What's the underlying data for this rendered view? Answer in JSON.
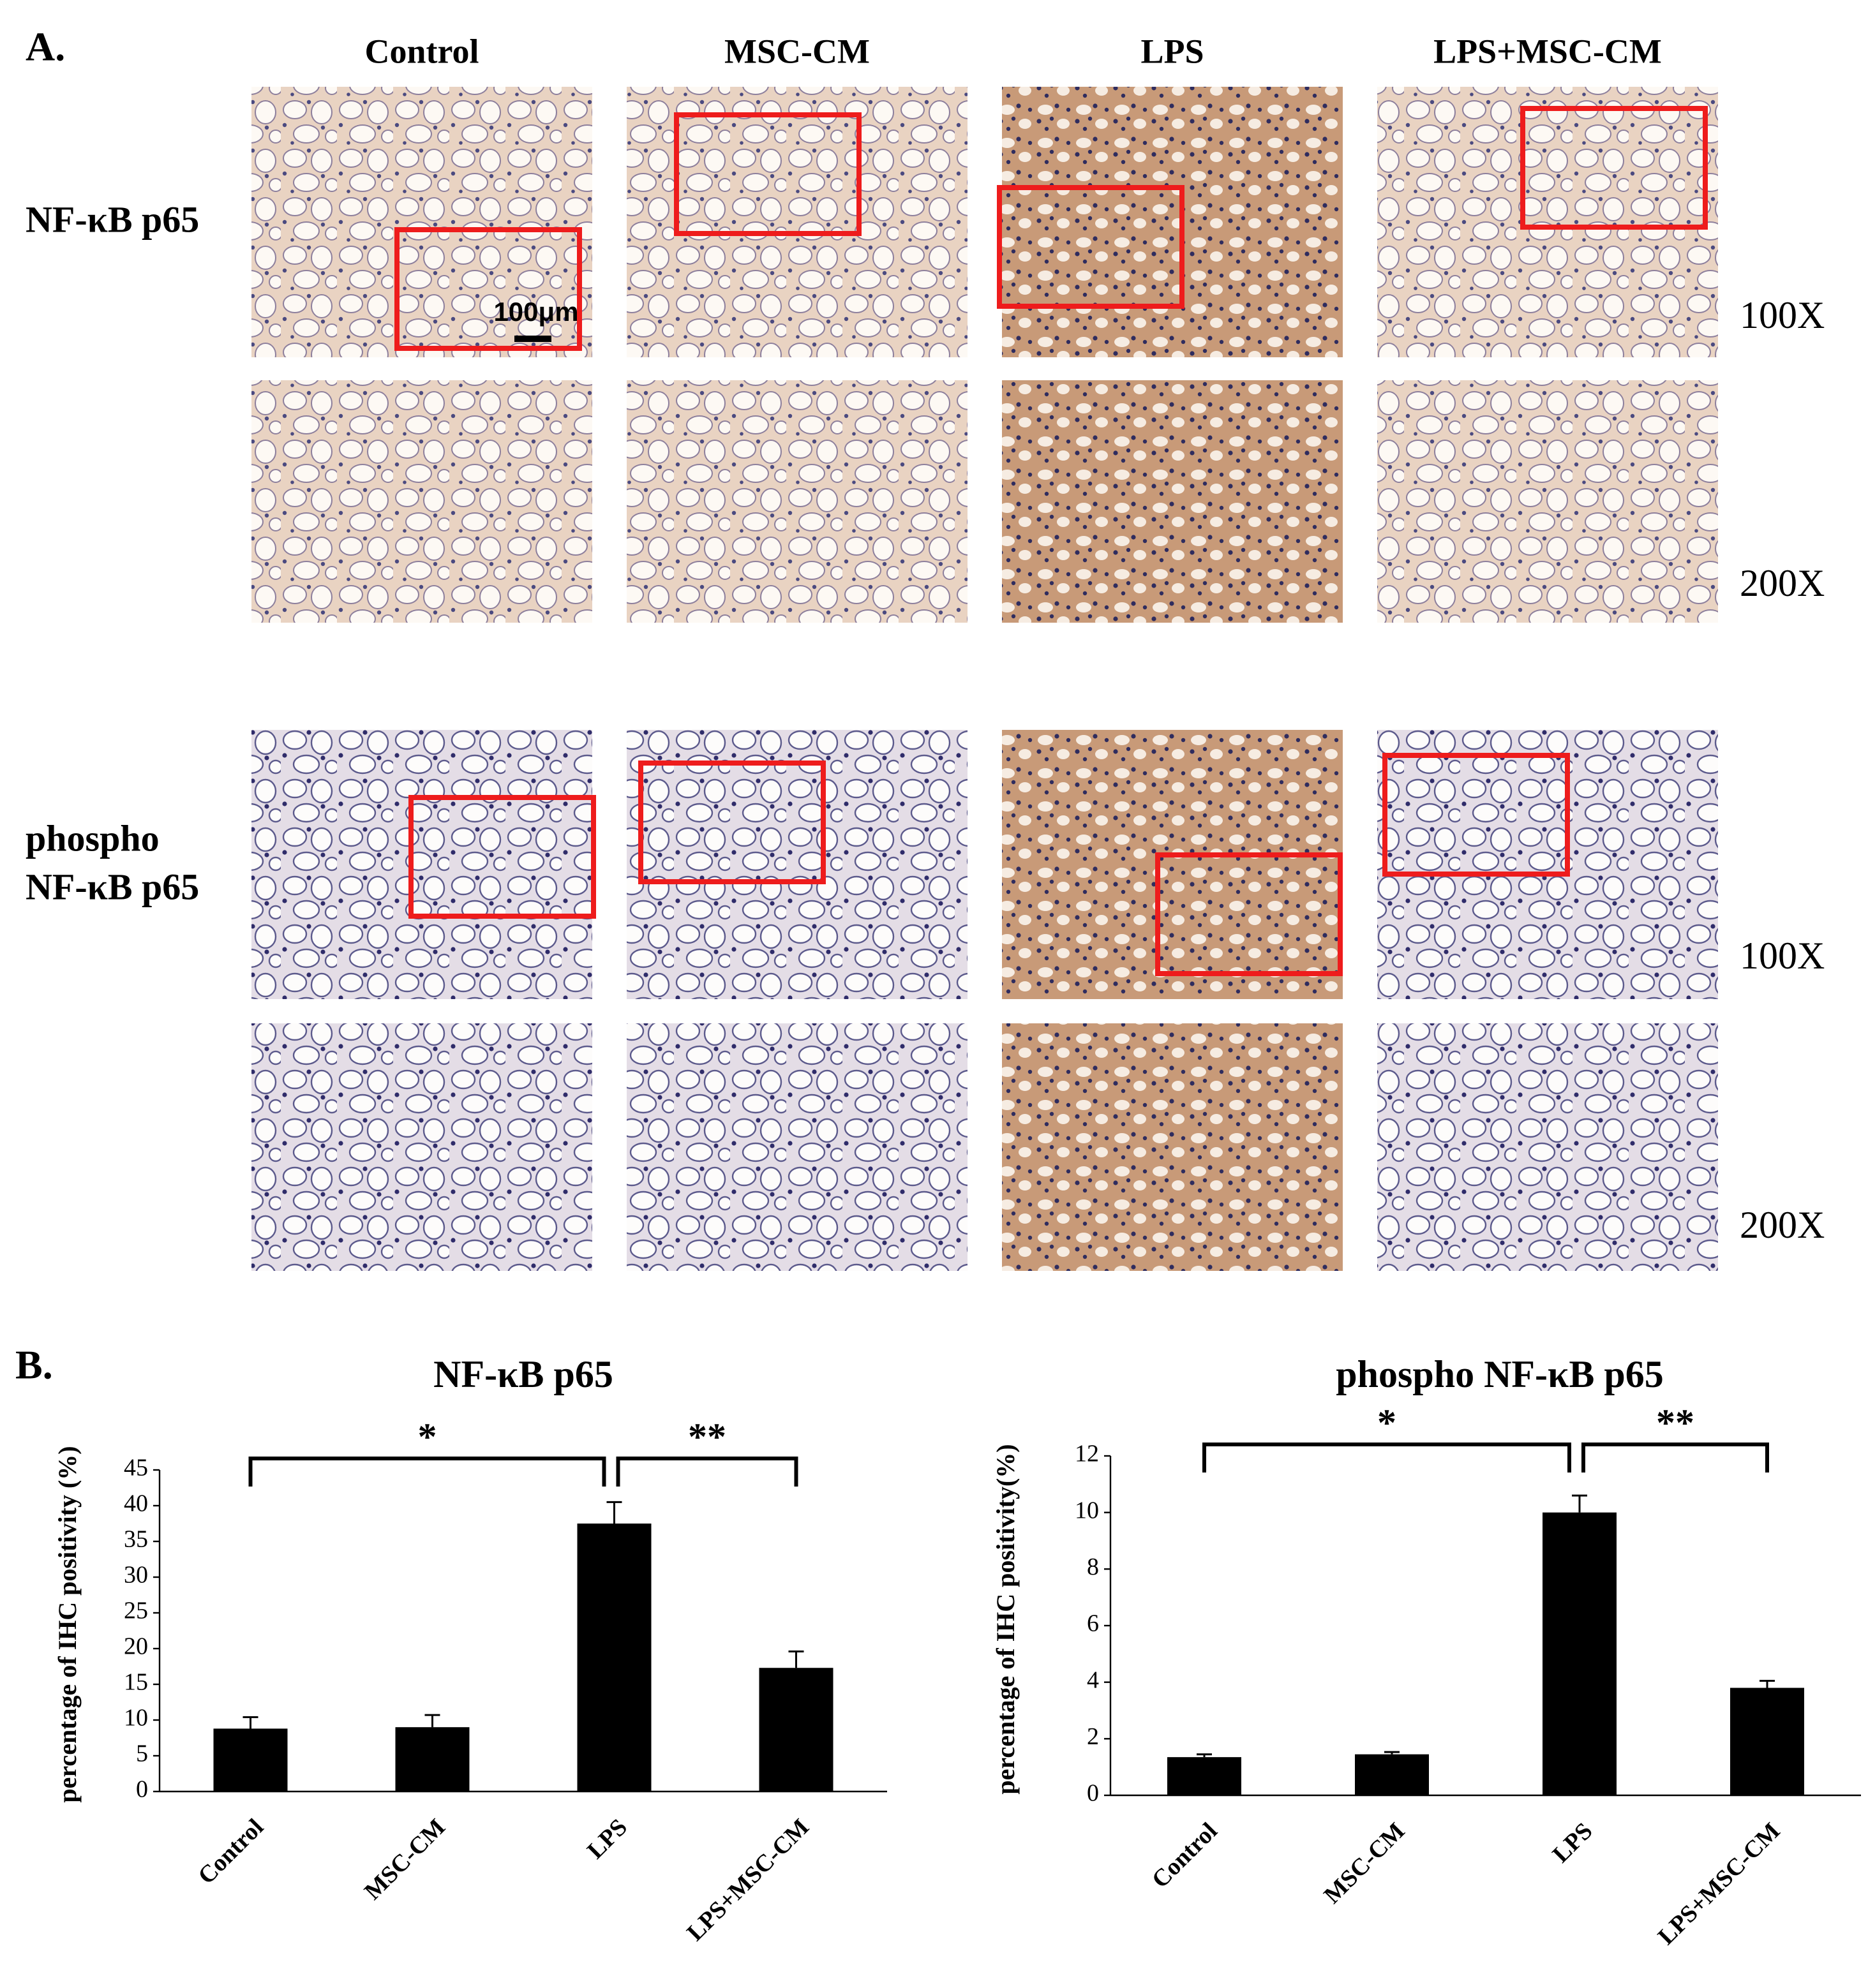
{
  "panel_a": {
    "label": "A.",
    "columns": [
      "Control",
      "MSC-CM",
      "LPS",
      "LPS+MSC-CM"
    ],
    "rows": [
      {
        "label_lines": [
          "NF-κB p65"
        ],
        "magnifications": [
          "100X",
          "200X"
        ]
      },
      {
        "label_lines": [
          "phospho",
          "NF-κB p65"
        ],
        "magnifications": [
          "100X",
          "200X"
        ]
      }
    ],
    "scale_bar": "100μm"
  },
  "panel_b_label": "B.",
  "chart_data": [
    {
      "type": "bar",
      "title": "NF-κB p65",
      "y_label": "percentage of IHC positivity (%)",
      "categories": [
        "Control",
        "MSC-CM",
        "LPS",
        "LPS+MSC-CM"
      ],
      "values": [
        8.8,
        9.0,
        37.5,
        17.3
      ],
      "errors": [
        1.6,
        1.7,
        3.0,
        2.3
      ],
      "color": "#000000",
      "ylim": [
        0,
        45
      ],
      "yticks": [
        0,
        5,
        10,
        15,
        20,
        25,
        30,
        35,
        40,
        45
      ],
      "annotations": [
        {
          "text": "*",
          "between": [
            0,
            2
          ]
        },
        {
          "text": "**",
          "between": [
            2,
            3
          ]
        }
      ]
    },
    {
      "type": "bar",
      "title": "phospho NF-κB p65",
      "y_label": "percentage of IHC positivity(%)",
      "categories": [
        "Control",
        "MSC-CM",
        "LPS",
        "LPS+MSC-CM"
      ],
      "values": [
        1.35,
        1.45,
        10.0,
        3.8
      ],
      "errors": [
        0.1,
        0.08,
        0.6,
        0.25
      ],
      "color": "#000000",
      "ylim": [
        0,
        12
      ],
      "yticks": [
        0,
        2,
        4,
        6,
        8,
        10,
        12
      ],
      "annotations": [
        {
          "text": "*",
          "between": [
            0,
            2
          ]
        },
        {
          "text": "**",
          "between": [
            2,
            3
          ]
        }
      ]
    }
  ]
}
